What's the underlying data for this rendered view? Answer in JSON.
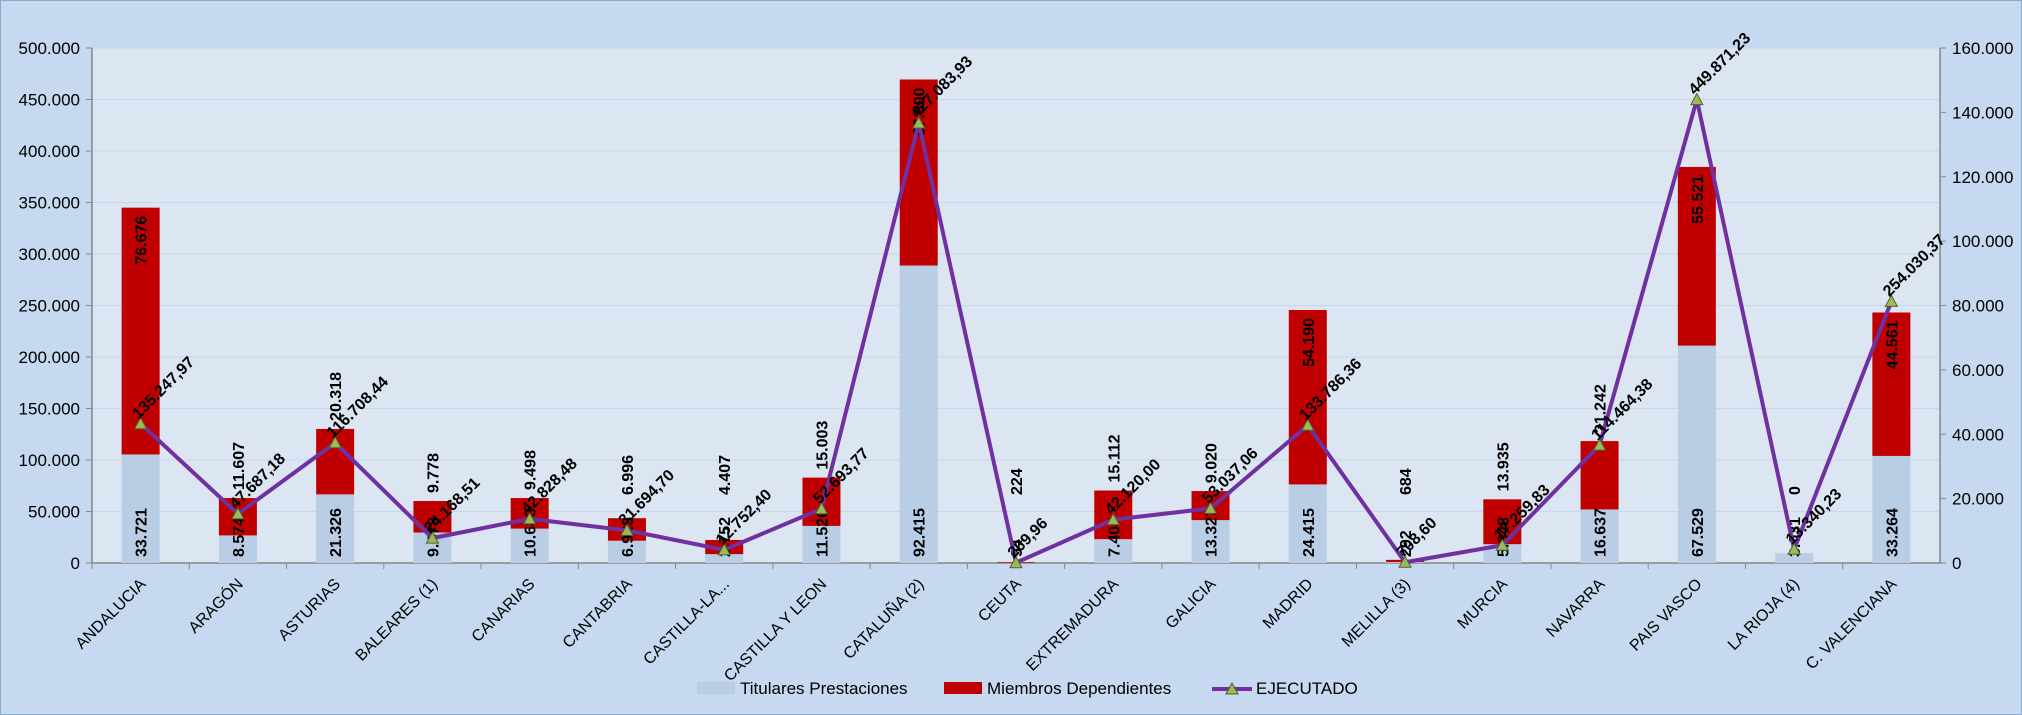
{
  "chart_data": {
    "type": "bar",
    "stacked": true,
    "categories": [
      "ANDALUCIA",
      "ARAGÓN",
      "ASTURIAS",
      "BALEARES (1)",
      "CANARIAS",
      "CANTABRIA",
      "CASTILLA-LA...",
      "CASTILLA Y LEON",
      "CATALUÑA (2)",
      "CEUTA",
      "EXTREMADURA",
      "GALICIA",
      "MADRID",
      "MELILLA (3)",
      "MURCIA",
      "NAVARRA",
      "PAIS VASCO",
      "LA RIOJA (4)",
      "C. VALENCIANA"
    ],
    "series": [
      {
        "name": "Titulares Prestaciones",
        "type": "bar",
        "axis": "right",
        "color": "#b9cde5",
        "values": [
          33721,
          8574,
          21326,
          9478,
          10683,
          6923,
          2752,
          11526,
          92415,
          94,
          7404,
          13327,
          24415,
          292,
          5848,
          16637,
          67529,
          3031,
          33264
        ],
        "labels": [
          "33.721",
          "8.574",
          "21.326",
          "9.478",
          "10.683",
          "6.923",
          "2.752",
          "11.526",
          "92.415",
          "94",
          "7.404",
          "13.327",
          "24.415",
          "292",
          "5.848",
          "16.637",
          "67.529",
          "3.031",
          "33.264"
        ]
      },
      {
        "name": "Miembros Dependientes",
        "type": "bar",
        "axis": "right",
        "color": "#c00000",
        "values": [
          76676,
          11607,
          20318,
          9778,
          9498,
          6996,
          4407,
          15003,
          57800,
          224,
          15112,
          9020,
          54190,
          684,
          13935,
          21242,
          55521,
          0,
          44561
        ],
        "labels": [
          "76.676",
          "11.607",
          "20.318",
          "9.778",
          "9.498",
          "6.996",
          "4.407",
          "15.003",
          "57.800",
          "224",
          "15.112",
          "9.020",
          "54.190",
          "684",
          "13.935",
          "21.242",
          "55.521",
          "0",
          "44.561"
        ]
      },
      {
        "name": "EJECUTADO",
        "type": "line",
        "axis": "left",
        "color": "#7030a0",
        "marker": "triangle",
        "marker_color": "#9bbb59",
        "values": [
          135247.97,
          47687.18,
          116708.44,
          24168.51,
          42828.48,
          31694.7,
          12752.4,
          52693.77,
          427083.93,
          269.96,
          42120.0,
          53037.06,
          133786.36,
          708.6,
          17259.83,
          114464.38,
          449871.23,
          13340.23,
          254030.37
        ],
        "labels": [
          "135.247,97",
          "47.687,18",
          "116.708,44",
          "24.168,51",
          "42.828,48",
          "31.694,70",
          "12.752,40",
          "52.693,77",
          "427.083,93",
          "269,96",
          "42.120,00",
          "53.037,06",
          "133.786,36",
          "708,60",
          "17.259,83",
          "114.464,38",
          "449.871,23",
          "13.340,23",
          "254.030,37"
        ]
      }
    ],
    "y_left": {
      "range": [
        0,
        500000
      ],
      "ticks": [
        "0",
        "50.000",
        "100.000",
        "150.000",
        "200.000",
        "250.000",
        "300.000",
        "350.000",
        "400.000",
        "450.000",
        "500.000"
      ]
    },
    "y_right": {
      "range": [
        0,
        160000
      ],
      "ticks": [
        "0",
        "20.000",
        "40.000",
        "60.000",
        "80.000",
        "100.000",
        "120.000",
        "140.000",
        "160.000"
      ]
    },
    "grid": true,
    "legend": "bottom-center"
  }
}
